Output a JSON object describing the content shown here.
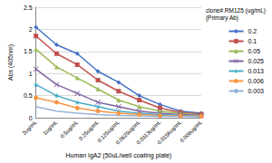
{
  "chart_data": {
    "type": "line",
    "legend_title": "clone# RM125 (ug/mL)\n(Primary Ab)",
    "x_label": "Human IgA2 (50uL/well coating plate)",
    "y_label": "Abs (405nm)",
    "categories": [
      "2ug/mL",
      "1ug/mL",
      "0.5ug/mL",
      "0.25ug/mL",
      "0.125ug/mL",
      "0.0625ug/mL",
      "0.0313ug/mL",
      "0.0156ug/mL",
      "0.008ug/mL"
    ],
    "series": [
      {
        "name": "0.2",
        "color": "#4472c4",
        "marker": "diamond",
        "values": [
          2.05,
          1.65,
          1.45,
          1.05,
          0.8,
          0.5,
          0.3,
          0.15,
          0.1
        ]
      },
      {
        "name": "0.1",
        "color": "#c0504d",
        "marker": "square",
        "values": [
          1.85,
          1.45,
          1.2,
          0.85,
          0.6,
          0.4,
          0.22,
          0.12,
          0.08
        ]
      },
      {
        "name": "0.05",
        "color": "#9bbb59",
        "marker": "triangle",
        "values": [
          1.55,
          1.15,
          0.9,
          0.65,
          0.4,
          0.25,
          0.15,
          0.1,
          0.06
        ]
      },
      {
        "name": "0.025",
        "color": "#8064a2",
        "marker": "x",
        "values": [
          1.1,
          0.75,
          0.55,
          0.35,
          0.25,
          0.15,
          0.1,
          0.07,
          0.05
        ]
      },
      {
        "name": "0.013",
        "color": "#4bacc6",
        "marker": "star",
        "values": [
          0.75,
          0.5,
          0.35,
          0.25,
          0.15,
          0.1,
          0.07,
          0.05,
          0.04
        ]
      },
      {
        "name": "0.006",
        "color": "#f79646",
        "marker": "circle",
        "values": [
          0.45,
          0.35,
          0.22,
          0.15,
          0.1,
          0.07,
          0.05,
          0.04,
          0.03
        ]
      },
      {
        "name": "0.003",
        "color": "#95b3d7",
        "marker": "none",
        "values": [
          0.25,
          0.15,
          0.1,
          0.07,
          0.05,
          0.04,
          0.03,
          0.03,
          0.02
        ]
      }
    ],
    "ylim": [
      0,
      2.5
    ],
    "yticks": [
      0,
      0.5,
      1,
      1.5,
      2,
      2.5
    ],
    "grid": true,
    "legend": "right"
  }
}
